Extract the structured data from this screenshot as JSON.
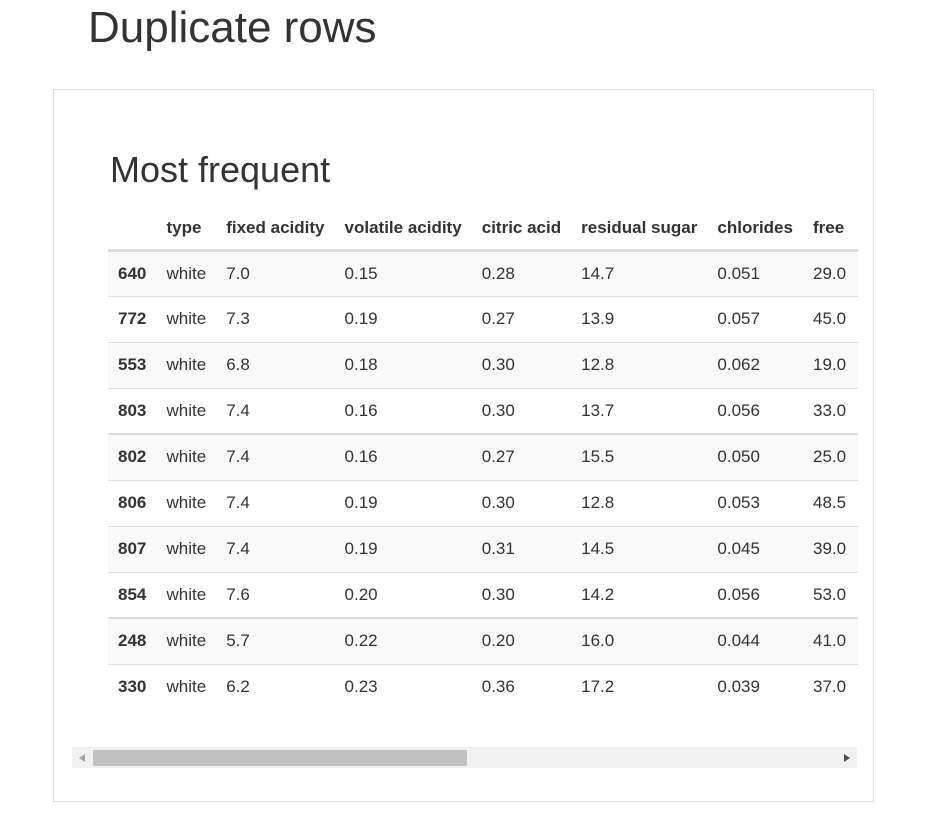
{
  "page": {
    "title": "Duplicate rows"
  },
  "section": {
    "title": "Most frequent"
  },
  "table": {
    "columns": [
      "",
      "type",
      "fixed acidity",
      "volatile acidity",
      "citric acid",
      "residual sugar",
      "chlorides",
      "free"
    ],
    "rows": [
      {
        "index": "640",
        "type": "white",
        "fixed_acidity": "7.0",
        "volatile_acidity": "0.15",
        "citric_acid": "0.28",
        "residual_sugar": "14.7",
        "chlorides": "0.051",
        "free": "29.0"
      },
      {
        "index": "772",
        "type": "white",
        "fixed_acidity": "7.3",
        "volatile_acidity": "0.19",
        "citric_acid": "0.27",
        "residual_sugar": "13.9",
        "chlorides": "0.057",
        "free": "45.0"
      },
      {
        "index": "553",
        "type": "white",
        "fixed_acidity": "6.8",
        "volatile_acidity": "0.18",
        "citric_acid": "0.30",
        "residual_sugar": "12.8",
        "chlorides": "0.062",
        "free": "19.0"
      },
      {
        "index": "803",
        "type": "white",
        "fixed_acidity": "7.4",
        "volatile_acidity": "0.16",
        "citric_acid": "0.30",
        "residual_sugar": "13.7",
        "chlorides": "0.056",
        "free": "33.0"
      },
      {
        "index": "802",
        "type": "white",
        "fixed_acidity": "7.4",
        "volatile_acidity": "0.16",
        "citric_acid": "0.27",
        "residual_sugar": "15.5",
        "chlorides": "0.050",
        "free": "25.0"
      },
      {
        "index": "806",
        "type": "white",
        "fixed_acidity": "7.4",
        "volatile_acidity": "0.19",
        "citric_acid": "0.30",
        "residual_sugar": "12.8",
        "chlorides": "0.053",
        "free": "48.5"
      },
      {
        "index": "807",
        "type": "white",
        "fixed_acidity": "7.4",
        "volatile_acidity": "0.19",
        "citric_acid": "0.31",
        "residual_sugar": "14.5",
        "chlorides": "0.045",
        "free": "39.0"
      },
      {
        "index": "854",
        "type": "white",
        "fixed_acidity": "7.6",
        "volatile_acidity": "0.20",
        "citric_acid": "0.30",
        "residual_sugar": "14.2",
        "chlorides": "0.056",
        "free": "53.0"
      },
      {
        "index": "248",
        "type": "white",
        "fixed_acidity": "5.7",
        "volatile_acidity": "0.22",
        "citric_acid": "0.20",
        "residual_sugar": "16.0",
        "chlorides": "0.044",
        "free": "41.0"
      },
      {
        "index": "330",
        "type": "white",
        "fixed_acidity": "6.2",
        "volatile_acidity": "0.23",
        "citric_acid": "0.36",
        "residual_sugar": "17.2",
        "chlorides": "0.039",
        "free": "37.0"
      }
    ]
  },
  "scrollbar": {
    "left_icon": "arrow-left-icon",
    "right_icon": "arrow-right-icon",
    "position_fraction": 0.0,
    "visible_fraction": 0.48
  },
  "colors": {
    "text": "#333333",
    "border": "#dddddd",
    "stripe": "#f9f9f9",
    "scroll_track": "#f1f1f1",
    "scroll_thumb": "#c1c1c1"
  }
}
